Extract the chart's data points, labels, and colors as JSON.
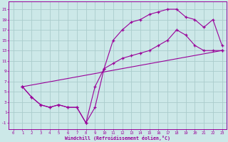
{
  "bg_color": "#cce8e8",
  "line_color": "#990099",
  "grid_color": "#aacccc",
  "xlabel": "Windchill (Refroidissement éolien,°C)",
  "xticks": [
    0,
    1,
    2,
    3,
    4,
    5,
    6,
    7,
    8,
    9,
    10,
    11,
    12,
    13,
    14,
    15,
    16,
    17,
    18,
    19,
    20,
    21,
    22,
    23
  ],
  "yticks": [
    -1,
    1,
    3,
    5,
    7,
    9,
    11,
    13,
    15,
    17,
    19,
    21
  ],
  "xlim": [
    -0.5,
    23.5
  ],
  "ylim": [
    -2.2,
    22.5
  ],
  "line1_x": [
    1,
    2,
    3,
    4,
    5,
    6,
    7,
    8,
    9,
    10,
    11,
    12,
    13,
    14,
    15,
    16,
    17,
    18,
    19,
    20,
    21,
    22,
    23
  ],
  "line1_y": [
    6,
    4,
    2.5,
    2,
    2.5,
    2,
    2,
    -1,
    2,
    9.5,
    15,
    17,
    18.5,
    19,
    20,
    20.5,
    21,
    21,
    19.5,
    19,
    17.5,
    19,
    14
  ],
  "line2_x": [
    1,
    2,
    3,
    4,
    5,
    6,
    7,
    8,
    9,
    10,
    11,
    12,
    13,
    14,
    15,
    16,
    17,
    18,
    19,
    20,
    21,
    22,
    23
  ],
  "line2_y": [
    6,
    4,
    2.5,
    2,
    2.5,
    2,
    2,
    -1,
    6,
    9.5,
    10.5,
    11.5,
    12,
    12.5,
    13,
    14,
    15,
    17,
    16,
    14,
    13,
    13,
    13
  ],
  "line3_x": [
    1,
    23
  ],
  "line3_y": [
    6,
    13
  ],
  "figsize": [
    3.2,
    2.0
  ],
  "dpi": 100
}
